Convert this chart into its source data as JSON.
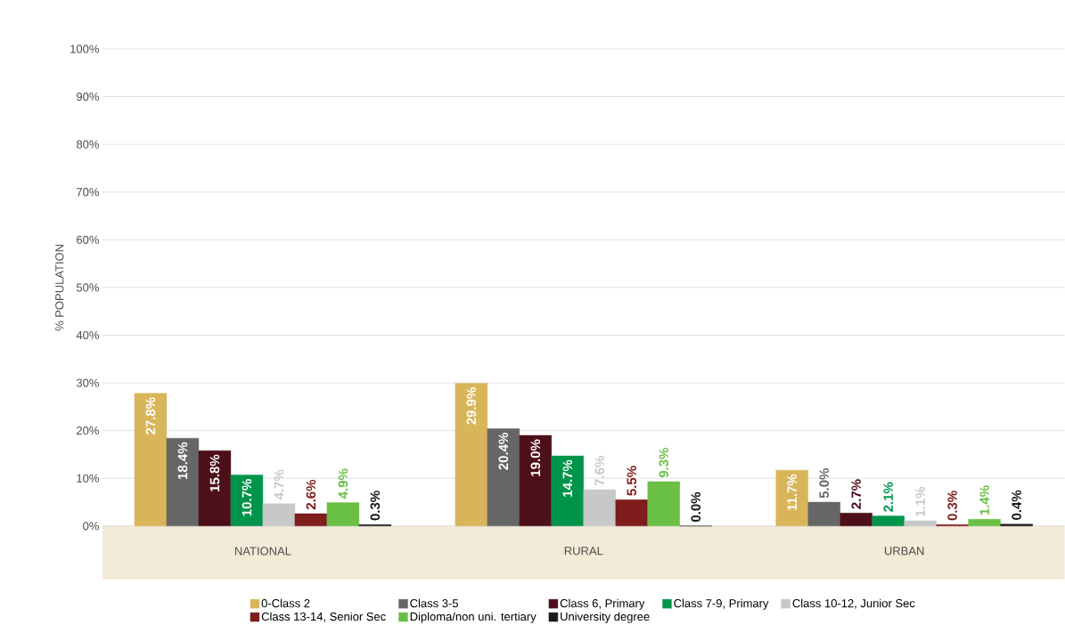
{
  "chart_data": {
    "type": "bar",
    "ylabel": "% POPULATION",
    "categories": [
      "NATIONAL",
      "RURAL",
      "URBAN"
    ],
    "ylim": [
      0,
      100
    ],
    "yticks": [
      {
        "value": 0,
        "label": "0%"
      },
      {
        "value": 10,
        "label": "10%"
      },
      {
        "value": 20,
        "label": "20%"
      },
      {
        "value": 30,
        "label": "30%"
      },
      {
        "value": 40,
        "label": "40%"
      },
      {
        "value": 50,
        "label": "50%"
      },
      {
        "value": 60,
        "label": "60%"
      },
      {
        "value": 70,
        "label": "70%"
      },
      {
        "value": 80,
        "label": "80%"
      },
      {
        "value": 90,
        "label": "90%"
      },
      {
        "value": 100,
        "label": "100%"
      }
    ],
    "grid": "y",
    "legend": "bottom",
    "series": [
      {
        "name": "0-Class 2",
        "color": "#d9b55a",
        "values": [
          27.8,
          29.9,
          11.7
        ],
        "value_labels": [
          "27.8%",
          "29.9%",
          "11.7%"
        ]
      },
      {
        "name": "Class 3-5",
        "color": "#666666",
        "values": [
          18.4,
          20.4,
          5.0
        ],
        "value_labels": [
          "18.4%",
          "20.4%",
          "5.0%"
        ]
      },
      {
        "name": "Class 6, Primary",
        "color": "#4d0f1a",
        "values": [
          15.8,
          19.0,
          2.7
        ],
        "value_labels": [
          "15.8%",
          "19.0%",
          "2.7%"
        ]
      },
      {
        "name": "Class 7-9, Primary",
        "color": "#00944a",
        "values": [
          10.7,
          14.7,
          2.1
        ],
        "value_labels": [
          "10.7%",
          "14.7%",
          "2.1%"
        ]
      },
      {
        "name": "Class 10-12, Junior Sec",
        "color": "#c8c8c8",
        "values": [
          4.7,
          7.6,
          1.1
        ],
        "value_labels": [
          "4.7%",
          "7.6%",
          "1.1%"
        ]
      },
      {
        "name": "Class 13-14, Senior Sec",
        "color": "#7f1d1d",
        "values": [
          2.6,
          5.5,
          0.3
        ],
        "value_labels": [
          "2.6%",
          "5.5%",
          "0.3%"
        ]
      },
      {
        "name": "Diploma/non uni. tertiary",
        "color": "#6abf45",
        "values": [
          4.9,
          9.3,
          1.4
        ],
        "value_labels": [
          "4.9%",
          "9.3%",
          "1.4%"
        ]
      },
      {
        "name": "University degree",
        "color": "#1a1a1a",
        "values": [
          0.3,
          0.0,
          0.4
        ],
        "value_labels": [
          "0.3%",
          "0.0%",
          "0.4%"
        ]
      }
    ]
  }
}
